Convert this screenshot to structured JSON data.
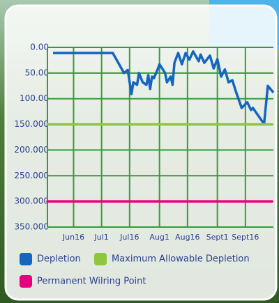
{
  "chart_data": {
    "type": "line",
    "x": [
      4,
      36,
      42,
      44,
      46,
      47,
      49,
      50,
      52,
      54,
      55,
      56,
      57,
      58,
      60,
      61,
      64,
      65,
      67,
      68,
      69,
      71,
      73,
      75,
      77,
      79,
      82,
      83,
      85,
      88,
      90,
      92,
      94,
      96,
      98,
      100,
      102,
      105,
      108,
      110,
      111,
      117,
      119,
      122
    ],
    "series": [
      {
        "name": "Depletion",
        "color": "#1565c0",
        "values": [
          11,
          11,
          50,
          44,
          91,
          68,
          73,
          50,
          68,
          73,
          54,
          81,
          57,
          60,
          43,
          33,
          50,
          68,
          57,
          73,
          30,
          11,
          33,
          11,
          24,
          8,
          27,
          14,
          30,
          16,
          41,
          23,
          57,
          43,
          68,
          64,
          87,
          118,
          107,
          122,
          118,
          149,
          75,
          88
        ]
      },
      {
        "name": "Maximum Allowable Depletion",
        "color": "#8dc63f",
        "value": 150
      },
      {
        "name": "Permanent Wilring Point",
        "color": "#e6007e",
        "value": 300
      }
    ],
    "xlim": [
      1,
      122
    ],
    "xticks": [
      {
        "value": 15,
        "label": "Jun16"
      },
      {
        "value": 30,
        "label": "Jul1"
      },
      {
        "value": 45,
        "label": "Jul16"
      },
      {
        "value": 61,
        "label": "Aug1"
      },
      {
        "value": 76,
        "label": "Aug16"
      },
      {
        "value": 92,
        "label": "Sept1"
      },
      {
        "value": 107,
        "label": "Sept16"
      }
    ],
    "ylim": [
      0,
      350
    ],
    "y_inverted": true,
    "yticks": [
      {
        "value": 0,
        "label": "0.00"
      },
      {
        "value": 50,
        "label": "50.00"
      },
      {
        "value": 100,
        "label": "100.00"
      },
      {
        "value": 150,
        "label": "150.000"
      },
      {
        "value": 200,
        "label": "200.000"
      },
      {
        "value": 250,
        "label": "250.000"
      },
      {
        "value": 300,
        "label": "300.000"
      },
      {
        "value": 350,
        "label": "350.000"
      }
    ],
    "grid": true,
    "grid_color": "#3a9a3a"
  }
}
